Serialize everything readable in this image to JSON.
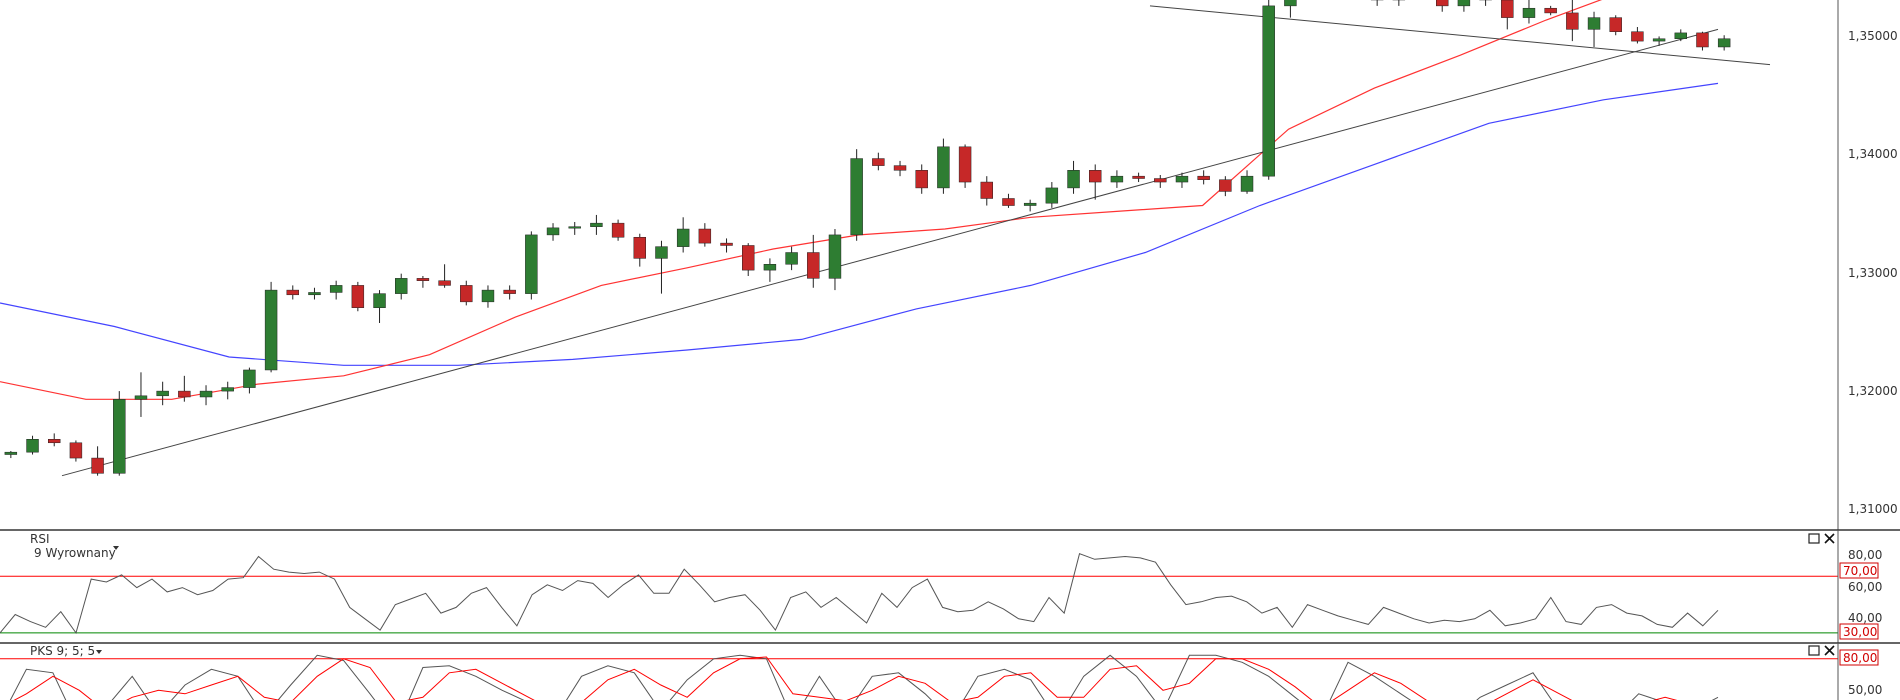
{
  "chart_data": [
    {
      "type": "candlestick",
      "name": "price",
      "y_ticks": [
        "1,35000",
        "1,34000",
        "1,33000",
        "1,32000",
        "1,31000"
      ],
      "ylim": [
        1.3058,
        1.3505
      ],
      "colors": {
        "up": "#2e7d32",
        "down": "#c62828",
        "wick": "#222222",
        "ma_red": "#ff3333",
        "ma_blue": "#4444ff",
        "trend": "#444444"
      },
      "candles": [
        [
          1.3118,
          1.3121,
          1.3115,
          1.312
        ],
        [
          1.312,
          1.3134,
          1.3118,
          1.3131
        ],
        [
          1.3131,
          1.3136,
          1.3125,
          1.3128
        ],
        [
          1.3128,
          1.313,
          1.3112,
          1.3115
        ],
        [
          1.3115,
          1.3125,
          1.31,
          1.3102
        ],
        [
          1.3102,
          1.3172,
          1.31,
          1.3165
        ],
        [
          1.3165,
          1.3188,
          1.315,
          1.3168
        ],
        [
          1.3168,
          1.318,
          1.316,
          1.3172
        ],
        [
          1.3172,
          1.3185,
          1.3163,
          1.3167
        ],
        [
          1.3167,
          1.3177,
          1.316,
          1.3172
        ],
        [
          1.3172,
          1.318,
          1.3165,
          1.3175
        ],
        [
          1.3175,
          1.3192,
          1.317,
          1.319
        ],
        [
          1.319,
          1.3265,
          1.3188,
          1.3258
        ],
        [
          1.3258,
          1.3262,
          1.325,
          1.3254
        ],
        [
          1.3254,
          1.326,
          1.325,
          1.3256
        ],
        [
          1.3256,
          1.3266,
          1.325,
          1.3262
        ],
        [
          1.3262,
          1.3265,
          1.324,
          1.3243
        ],
        [
          1.3243,
          1.3258,
          1.323,
          1.3255
        ],
        [
          1.3255,
          1.3272,
          1.325,
          1.3268
        ],
        [
          1.3268,
          1.327,
          1.326,
          1.3266
        ],
        [
          1.3266,
          1.328,
          1.326,
          1.3262
        ],
        [
          1.3262,
          1.3266,
          1.3245,
          1.3248
        ],
        [
          1.3248,
          1.3262,
          1.3243,
          1.3258
        ],
        [
          1.3258,
          1.3262,
          1.325,
          1.3255
        ],
        [
          1.3255,
          1.3308,
          1.325,
          1.3305
        ],
        [
          1.3305,
          1.3315,
          1.33,
          1.3311
        ],
        [
          1.3311,
          1.3316,
          1.3305,
          1.3312
        ],
        [
          1.3312,
          1.3322,
          1.3305,
          1.3315
        ],
        [
          1.3315,
          1.3318,
          1.33,
          1.3303
        ],
        [
          1.3303,
          1.3306,
          1.3278,
          1.3285
        ],
        [
          1.3285,
          1.33,
          1.3255,
          1.3295
        ],
        [
          1.3295,
          1.332,
          1.329,
          1.331
        ],
        [
          1.331,
          1.3315,
          1.3295,
          1.3298
        ],
        [
          1.3298,
          1.3302,
          1.329,
          1.3296
        ],
        [
          1.3296,
          1.3298,
          1.327,
          1.3275
        ],
        [
          1.3275,
          1.3285,
          1.3265,
          1.328
        ],
        [
          1.328,
          1.3295,
          1.3275,
          1.329
        ],
        [
          1.329,
          1.3305,
          1.326,
          1.3268
        ],
        [
          1.3268,
          1.331,
          1.3258,
          1.3305
        ],
        [
          1.3305,
          1.3378,
          1.33,
          1.337
        ],
        [
          1.337,
          1.3375,
          1.336,
          1.3364
        ],
        [
          1.3364,
          1.3368,
          1.3355,
          1.336
        ],
        [
          1.336,
          1.3365,
          1.334,
          1.3345
        ],
        [
          1.3345,
          1.3387,
          1.334,
          1.338
        ],
        [
          1.338,
          1.3382,
          1.3345,
          1.335
        ],
        [
          1.335,
          1.3355,
          1.333,
          1.3336
        ],
        [
          1.3336,
          1.334,
          1.3328,
          1.333
        ],
        [
          1.333,
          1.3335,
          1.3325,
          1.3332
        ],
        [
          1.3332,
          1.335,
          1.3328,
          1.3345
        ],
        [
          1.3345,
          1.3368,
          1.334,
          1.336
        ],
        [
          1.336,
          1.3365,
          1.3335,
          1.335
        ],
        [
          1.335,
          1.336,
          1.3345,
          1.3355
        ],
        [
          1.3355,
          1.3358,
          1.335,
          1.3353
        ],
        [
          1.3353,
          1.3356,
          1.3345,
          1.335
        ],
        [
          1.335,
          1.3358,
          1.3345,
          1.3355
        ],
        [
          1.3355,
          1.336,
          1.3348,
          1.3352
        ],
        [
          1.3352,
          1.3355,
          1.3338,
          1.3342
        ],
        [
          1.3342,
          1.336,
          1.334,
          1.3355
        ],
        [
          1.3355,
          1.3505,
          1.3352,
          1.35
        ],
        [
          1.35,
          1.3515,
          1.349,
          1.3512
        ],
        [
          1.3512,
          1.352,
          1.3505,
          1.3515
        ],
        [
          1.3515,
          1.3522,
          1.3508,
          1.3518
        ],
        [
          1.3518,
          1.352,
          1.351,
          1.3515
        ],
        [
          1.3515,
          1.352,
          1.35,
          1.3505
        ],
        [
          1.3505,
          1.3525,
          1.35,
          1.352
        ],
        [
          1.352,
          1.3525,
          1.3508,
          1.3512
        ],
        [
          1.3512,
          1.3518,
          1.3495,
          1.35
        ],
        [
          1.35,
          1.3522,
          1.3495,
          1.3518
        ],
        [
          1.3518,
          1.3522,
          1.35,
          1.3505
        ],
        [
          1.3505,
          1.351,
          1.348,
          1.349
        ],
        [
          1.349,
          1.3505,
          1.3485,
          1.3498
        ],
        [
          1.3498,
          1.35,
          1.3492,
          1.3494
        ],
        [
          1.3494,
          1.3515,
          1.347,
          1.348
        ],
        [
          1.348,
          1.3495,
          1.3465,
          1.349
        ],
        [
          1.349,
          1.3492,
          1.3475,
          1.3478
        ],
        [
          1.3478,
          1.3482,
          1.3468,
          1.347
        ],
        [
          1.347,
          1.3474,
          1.3466,
          1.3472
        ],
        [
          1.3472,
          1.348,
          1.347,
          1.3477
        ],
        [
          1.3477,
          1.3478,
          1.3462,
          1.3465
        ],
        [
          1.3465,
          1.3475,
          1.3462,
          1.3472
        ]
      ],
      "ma_red": [
        1.318,
        1.3165,
        1.3165,
        1.3178,
        1.3185,
        1.3203,
        1.3235,
        1.3262,
        1.3277,
        1.3293,
        1.3305,
        1.331,
        1.332,
        1.3325,
        1.333,
        1.3395,
        1.343,
        1.3458,
        1.3488,
        1.3515,
        1.351
      ],
      "ma_blue": [
        1.3247,
        1.3227,
        1.3201,
        1.3194,
        1.3194,
        1.3199,
        1.3207,
        1.3216,
        1.3242,
        1.3262,
        1.329,
        1.333,
        1.3365,
        1.34,
        1.342,
        1.3434
      ],
      "trend_lines": [
        {
          "from": [
            1.31,
            0
          ],
          "to": [
            1.348,
            1
          ]
        },
        {
          "from": [
            1.35,
            0
          ],
          "to": [
            1.345,
            1
          ]
        },
        {
          "from": [
            1.353,
            0
          ],
          "to": [
            1.3518,
            1
          ]
        }
      ]
    },
    {
      "type": "line",
      "name": "rsi",
      "title": "RSI",
      "subtitle": "9 Wyrownany",
      "y_ticks": [
        "80,00",
        "60,00",
        "40,00"
      ],
      "levels": [
        {
          "label": "70,00",
          "value": 70,
          "color": "#ff0000"
        },
        {
          "label": "30,00",
          "value": 30,
          "color": "#008800"
        }
      ],
      "ylim": [
        25,
        90
      ],
      "values": [
        30,
        43,
        38,
        34,
        45,
        30,
        68,
        66,
        71,
        62,
        68,
        59,
        62,
        57,
        60,
        68,
        69,
        84,
        75,
        73,
        72,
        73,
        68,
        48,
        40,
        32,
        50,
        54,
        58,
        44,
        48,
        58,
        62,
        48,
        35,
        57,
        64,
        60,
        67,
        65,
        55,
        64,
        71,
        58,
        58,
        75,
        64,
        52,
        55,
        57,
        46,
        32,
        55,
        59,
        48,
        55,
        46,
        37,
        58,
        48,
        62,
        68,
        48,
        45,
        46,
        52,
        47,
        40,
        38,
        55,
        44,
        86,
        82,
        83,
        84,
        83,
        80,
        64,
        50,
        52,
        55,
        56,
        52,
        44,
        48,
        34,
        50,
        46,
        42,
        39,
        36,
        48,
        44,
        40,
        37,
        39,
        38,
        40,
        46,
        35,
        37,
        40,
        55,
        38,
        36,
        48,
        50,
        44,
        42,
        36,
        34,
        44,
        35,
        46
      ]
    },
    {
      "type": "line",
      "name": "stochastic",
      "title": "PKS 9; 5; 5",
      "y_ticks": [
        "50,00"
      ],
      "levels": [
        {
          "label": "80,00",
          "value": 80,
          "color": "#ff0000"
        }
      ],
      "ylim": [
        45,
        85
      ],
      "series": [
        {
          "color": "#555555",
          "values": [
            45,
            74,
            72,
            40,
            52,
            70,
            48,
            65,
            74,
            70,
            47,
            65,
            82,
            79,
            60,
            40,
            75,
            76,
            70,
            62,
            55,
            46,
            70,
            76,
            72,
            50,
            68,
            80,
            82,
            80,
            45,
            70,
            48,
            70,
            72,
            60,
            45,
            70,
            74,
            68,
            45,
            70,
            82,
            70,
            50,
            82,
            82,
            78,
            70,
            58,
            46,
            78,
            70,
            60,
            50,
            45,
            58,
            65,
            72,
            50,
            48,
            45,
            60,
            55,
            50,
            58
          ]
        },
        {
          "color": "#ff0000",
          "values": [
            52,
            60,
            70,
            62,
            50,
            58,
            62,
            60,
            65,
            70,
            58,
            55,
            70,
            80,
            75,
            55,
            58,
            72,
            74,
            66,
            58,
            50,
            55,
            68,
            74,
            65,
            58,
            72,
            80,
            81,
            60,
            58,
            56,
            62,
            70,
            66,
            55,
            58,
            70,
            72,
            58,
            58,
            74,
            76,
            62,
            66,
            80,
            80,
            74,
            64,
            52,
            62,
            72,
            66,
            56,
            50,
            52,
            60,
            68,
            60,
            52,
            48,
            54,
            58,
            54,
            54
          ]
        }
      ]
    }
  ]
}
